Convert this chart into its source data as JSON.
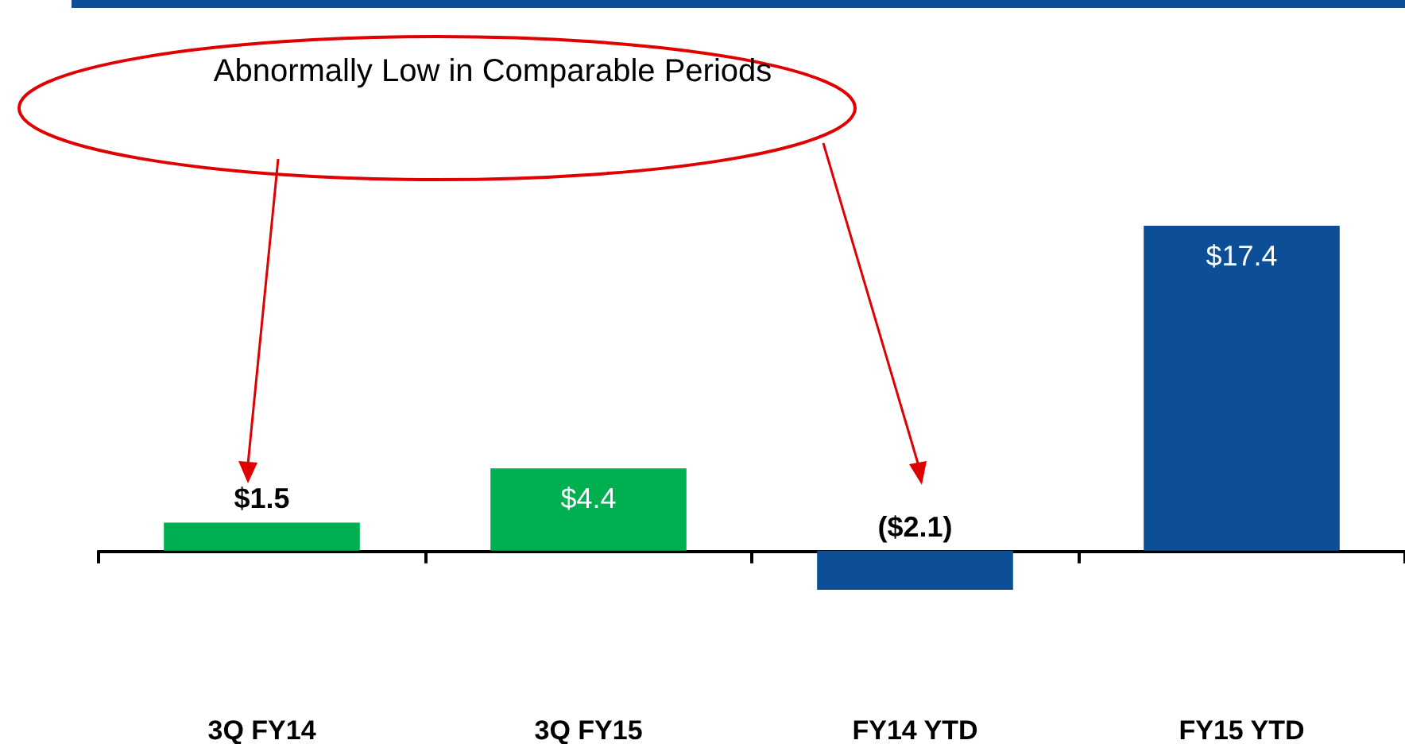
{
  "chart_data": {
    "type": "bar",
    "categories": [
      "3Q FY14",
      "3Q FY15",
      "FY14 YTD",
      "FY15 YTD"
    ],
    "values": [
      1.5,
      4.4,
      -2.1,
      17.4
    ],
    "colors": [
      "#00b050",
      "#00b050",
      "#0c4f96",
      "#0c4f96"
    ],
    "value_labels": [
      "$1.5",
      "$4.4",
      "($2.1)",
      "$17.4"
    ],
    "annotations": [
      "Abnormally Low in Comparable Periods"
    ]
  }
}
